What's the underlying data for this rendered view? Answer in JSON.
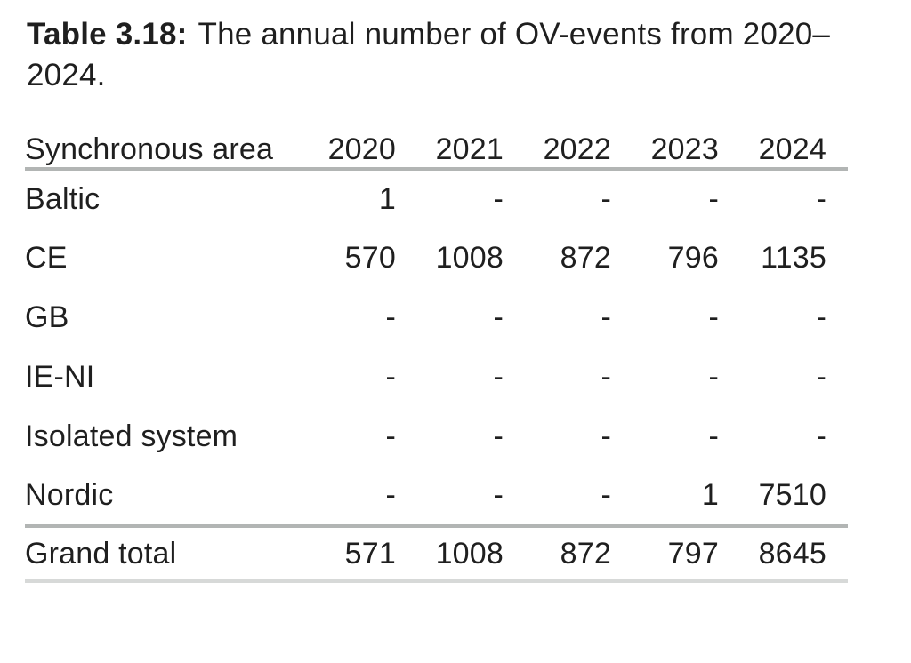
{
  "caption": {
    "label": "Table 3.18:",
    "line1": "The annual number of OV-events from 2020–",
    "line2": "2024."
  },
  "table": {
    "header": {
      "area": "Synchronous area",
      "years": [
        "2020",
        "2021",
        "2022",
        "2023",
        "2024"
      ]
    },
    "rows": [
      {
        "label": "Baltic",
        "values": [
          "1",
          "-",
          "-",
          "-",
          "-"
        ]
      },
      {
        "label": "CE",
        "values": [
          "570",
          "1008",
          "872",
          "796",
          "1135"
        ]
      },
      {
        "label": "GB",
        "values": [
          "-",
          "-",
          "-",
          "-",
          "-"
        ]
      },
      {
        "label": "IE-NI",
        "values": [
          "-",
          "-",
          "-",
          "-",
          "-"
        ]
      },
      {
        "label": "Isolated system",
        "values": [
          "-",
          "-",
          "-",
          "-",
          "-"
        ]
      },
      {
        "label": "Nordic",
        "values": [
          "-",
          "-",
          "-",
          "1",
          "7510"
        ]
      }
    ],
    "footer": {
      "label": "Grand total",
      "values": [
        "571",
        "1008",
        "872",
        "797",
        "8645"
      ]
    }
  },
  "colors": {
    "text": "#1f1f1f",
    "rule": "#b2b5b4",
    "rule_light": "#d7d9d8",
    "background": "#ffffff"
  }
}
